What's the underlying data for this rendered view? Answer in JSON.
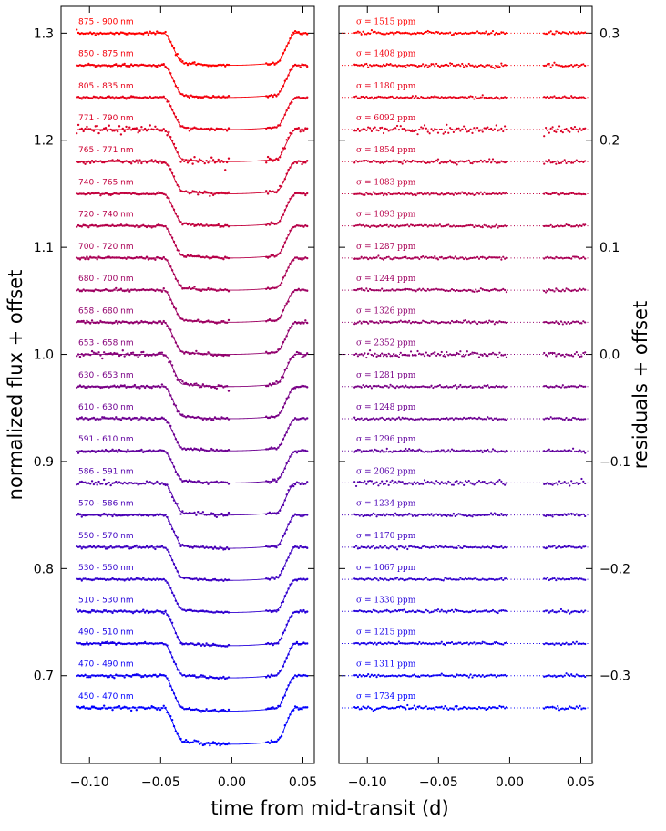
{
  "chart_data": {
    "type": "scatter",
    "xlabel": "time from mid-transit (d)",
    "colors": {
      "red": "#ff0000",
      "blue": "#0000ff"
    },
    "left_panel": {
      "ylabel": "normalized flux + offset",
      "xlim": [
        -0.12,
        0.058
      ],
      "ylim": [
        0.618,
        1.325
      ],
      "xticks": [
        -0.1,
        -0.05,
        0.0,
        0.05
      ],
      "xtick_labels": [
        "−0.10",
        "−0.05",
        "0.00",
        "0.05"
      ],
      "yticks": [
        0.7,
        0.8,
        0.9,
        1.0,
        1.1,
        1.2,
        1.3
      ],
      "ytick_labels": [
        "0.7",
        "0.8",
        "0.9",
        "1.0",
        "1.1",
        "1.2",
        "1.3"
      ],
      "transit": {
        "t1": -0.048,
        "t4": 0.045,
        "ingress": 0.014
      }
    },
    "right_panel": {
      "ylabel": "residuals + offset",
      "xlim": [
        -0.12,
        0.058
      ],
      "ylim": [
        -0.382,
        0.325
      ],
      "xticks": [
        -0.1,
        -0.05,
        0.0,
        0.05
      ],
      "xtick_labels": [
        "−0.10",
        "−0.05",
        "0.00",
        "0.05"
      ],
      "yticks": [
        -0.3,
        -0.2,
        -0.1,
        0.0,
        0.1,
        0.2,
        0.3
      ],
      "ytick_labels": [
        "−0.3",
        "−0.2",
        "−0.1",
        "0.0",
        "0.1",
        "0.2",
        "0.3"
      ],
      "data_gap": [
        -0.001,
        0.024
      ]
    },
    "channels": [
      {
        "band": "875 - 900 nm",
        "sigma": "σ = 1515 ppm",
        "flux_offset": 1.3,
        "resid_offset": 0.3,
        "depth": 0.03
      },
      {
        "band": "850 - 875 nm",
        "sigma": "σ = 1408 ppm",
        "flux_offset": 1.27,
        "resid_offset": 0.27,
        "depth": 0.03
      },
      {
        "band": "805 - 835 nm",
        "sigma": "σ = 1180 ppm",
        "flux_offset": 1.24,
        "resid_offset": 0.24,
        "depth": 0.03
      },
      {
        "band": "771 - 790 nm",
        "sigma": "σ = 6092 ppm",
        "flux_offset": 1.21,
        "resid_offset": 0.21,
        "depth": 0.03
      },
      {
        "band": "765 - 771 nm",
        "sigma": "σ = 1854 ppm",
        "flux_offset": 1.18,
        "resid_offset": 0.18,
        "depth": 0.03
      },
      {
        "band": "740 - 765 nm",
        "sigma": "σ = 1083 ppm",
        "flux_offset": 1.15,
        "resid_offset": 0.15,
        "depth": 0.03
      },
      {
        "band": "720 - 740 nm",
        "sigma": "σ = 1093 ppm",
        "flux_offset": 1.12,
        "resid_offset": 0.12,
        "depth": 0.03
      },
      {
        "band": "700 - 720 nm",
        "sigma": "σ = 1287 ppm",
        "flux_offset": 1.09,
        "resid_offset": 0.09,
        "depth": 0.03
      },
      {
        "band": "680 - 700 nm",
        "sigma": "σ = 1244 ppm",
        "flux_offset": 1.06,
        "resid_offset": 0.06,
        "depth": 0.03
      },
      {
        "band": "658 - 680 nm",
        "sigma": "σ = 1326 ppm",
        "flux_offset": 1.03,
        "resid_offset": 0.03,
        "depth": 0.03
      },
      {
        "band": "653 - 658 nm",
        "sigma": "σ = 2352 ppm",
        "flux_offset": 1.0,
        "resid_offset": 0.0,
        "depth": 0.03
      },
      {
        "band": "630 - 653 nm",
        "sigma": "σ = 1281 ppm",
        "flux_offset": 0.97,
        "resid_offset": -0.03,
        "depth": 0.03
      },
      {
        "band": "610 - 630 nm",
        "sigma": "σ = 1248 ppm",
        "flux_offset": 0.94,
        "resid_offset": -0.06,
        "depth": 0.03
      },
      {
        "band": "591 - 610 nm",
        "sigma": "σ = 1296 ppm",
        "flux_offset": 0.91,
        "resid_offset": -0.09,
        "depth": 0.03
      },
      {
        "band": "586 - 591 nm",
        "sigma": "σ = 2062 ppm",
        "flux_offset": 0.88,
        "resid_offset": -0.12,
        "depth": 0.03
      },
      {
        "band": "570 - 586 nm",
        "sigma": "σ = 1234 ppm",
        "flux_offset": 0.85,
        "resid_offset": -0.15,
        "depth": 0.031
      },
      {
        "band": "550 - 570 nm",
        "sigma": "σ = 1170 ppm",
        "flux_offset": 0.82,
        "resid_offset": -0.18,
        "depth": 0.031
      },
      {
        "band": "530 - 550 nm",
        "sigma": "σ = 1067 ppm",
        "flux_offset": 0.79,
        "resid_offset": -0.21,
        "depth": 0.031
      },
      {
        "band": "510 - 530 nm",
        "sigma": "σ = 1330 ppm",
        "flux_offset": 0.76,
        "resid_offset": -0.24,
        "depth": 0.032
      },
      {
        "band": "490 - 510 nm",
        "sigma": "σ = 1215 ppm",
        "flux_offset": 0.73,
        "resid_offset": -0.27,
        "depth": 0.032
      },
      {
        "band": "470 - 490 nm",
        "sigma": "σ = 1311 ppm",
        "flux_offset": 0.7,
        "resid_offset": -0.3,
        "depth": 0.033
      },
      {
        "band": "450 - 470 nm",
        "sigma": "σ = 1734 ppm",
        "flux_offset": 0.67,
        "resid_offset": -0.33,
        "depth": 0.034
      }
    ]
  }
}
